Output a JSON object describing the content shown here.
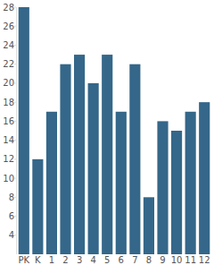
{
  "chart_data": {
    "type": "bar",
    "categories": [
      "PK",
      "K",
      "1",
      "2",
      "3",
      "4",
      "5",
      "6",
      "7",
      "8",
      "9",
      "10",
      "11",
      "12"
    ],
    "values": [
      28,
      12,
      17,
      22,
      23,
      20,
      23,
      17,
      22,
      8,
      16,
      15,
      17,
      18
    ],
    "color": "#346789",
    "ylim": [
      2,
      28
    ],
    "yticks": [
      4,
      6,
      8,
      10,
      12,
      14,
      16,
      18,
      20,
      22,
      24,
      26,
      28
    ],
    "grid": false
  }
}
